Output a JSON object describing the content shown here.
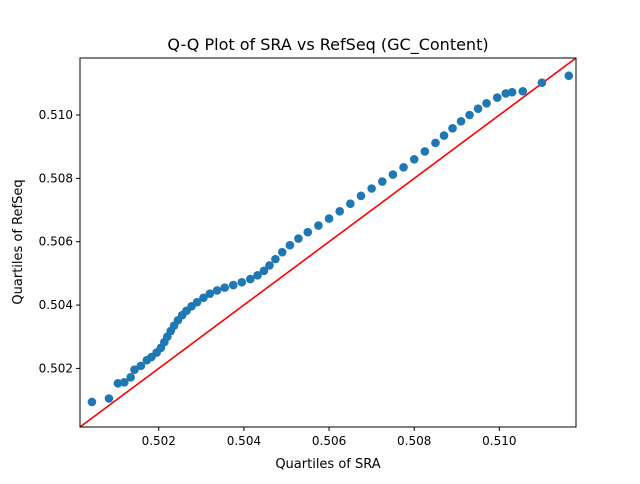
{
  "chart_data": {
    "type": "scatter",
    "title": "Q-Q Plot of SRA vs RefSeq (GC_Content)",
    "xlabel": "Quartiles of SRA",
    "ylabel": "Quartiles of RefSeq",
    "xlim": [
      0.50015,
      0.5118
    ],
    "ylim": [
      0.50015,
      0.5118
    ],
    "xticks": [
      0.502,
      0.504,
      0.506,
      0.508,
      0.51
    ],
    "yticks": [
      0.502,
      0.504,
      0.506,
      0.508,
      0.51
    ],
    "tick_format_decimals": 3,
    "grid": false,
    "legend": "none",
    "reference_line": {
      "type": "y=x",
      "color": "#ff0000"
    },
    "series": [
      {
        "color": "#1f77b4",
        "points": [
          [
            0.50043,
            0.50094
          ],
          [
            0.50083,
            0.50105
          ],
          [
            0.50104,
            0.50153
          ],
          [
            0.50119,
            0.50156
          ],
          [
            0.50134,
            0.50172
          ],
          [
            0.50143,
            0.50196
          ],
          [
            0.50158,
            0.50208
          ],
          [
            0.50172,
            0.50226
          ],
          [
            0.50183,
            0.50236
          ],
          [
            0.50195,
            0.5025
          ],
          [
            0.50205,
            0.50265
          ],
          [
            0.50213,
            0.50283
          ],
          [
            0.5022,
            0.503
          ],
          [
            0.50228,
            0.50318
          ],
          [
            0.50236,
            0.50335
          ],
          [
            0.50245,
            0.50352
          ],
          [
            0.50255,
            0.50368
          ],
          [
            0.50265,
            0.50382
          ],
          [
            0.50277,
            0.50396
          ],
          [
            0.5029,
            0.50409
          ],
          [
            0.50305,
            0.50423
          ],
          [
            0.5032,
            0.50436
          ],
          [
            0.50337,
            0.50446
          ],
          [
            0.50355,
            0.50455
          ],
          [
            0.50375,
            0.50463
          ],
          [
            0.50395,
            0.50472
          ],
          [
            0.50415,
            0.50482
          ],
          [
            0.50432,
            0.50494
          ],
          [
            0.50447,
            0.50508
          ],
          [
            0.5046,
            0.50525
          ],
          [
            0.50474,
            0.50545
          ],
          [
            0.5049,
            0.50567
          ],
          [
            0.50508,
            0.50589
          ],
          [
            0.50528,
            0.5061
          ],
          [
            0.5055,
            0.5063
          ],
          [
            0.50575,
            0.50651
          ],
          [
            0.506,
            0.50673
          ],
          [
            0.50625,
            0.50696
          ],
          [
            0.5065,
            0.5072
          ],
          [
            0.50675,
            0.50745
          ],
          [
            0.507,
            0.50768
          ],
          [
            0.50725,
            0.5079
          ],
          [
            0.5075,
            0.50812
          ],
          [
            0.50775,
            0.50835
          ],
          [
            0.508,
            0.5086
          ],
          [
            0.50825,
            0.50885
          ],
          [
            0.5085,
            0.50912
          ],
          [
            0.5087,
            0.50935
          ],
          [
            0.5089,
            0.50958
          ],
          [
            0.5091,
            0.5098
          ],
          [
            0.5093,
            0.51
          ],
          [
            0.5095,
            0.5102
          ],
          [
            0.5097,
            0.51037
          ],
          [
            0.50995,
            0.51055
          ],
          [
            0.51015,
            0.51068
          ],
          [
            0.5103,
            0.51072
          ],
          [
            0.51055,
            0.51075
          ],
          [
            0.511,
            0.51102
          ],
          [
            0.51163,
            0.51124
          ]
        ]
      }
    ]
  }
}
